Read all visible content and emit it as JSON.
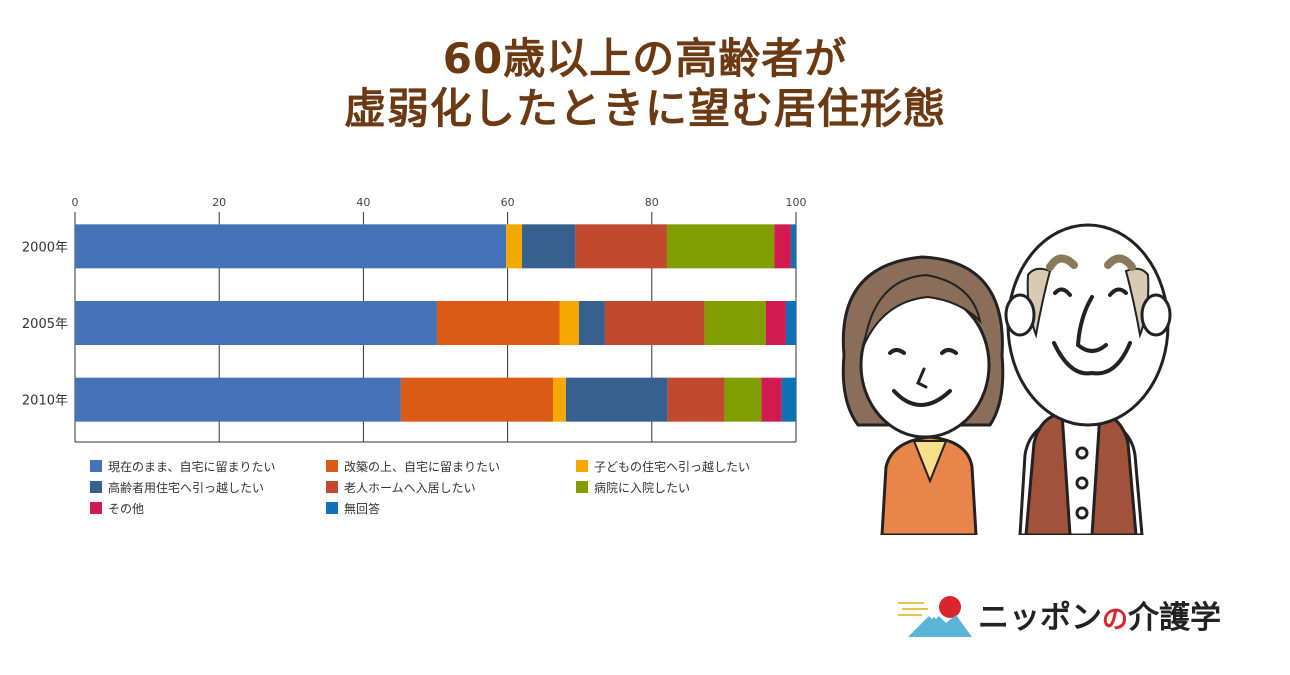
{
  "title": {
    "line1": "60歳以上の高齢者が",
    "line2": "虚弱化したときに望む居住形態"
  },
  "chart_data": {
    "type": "bar",
    "orientation": "horizontal",
    "stacked": true,
    "categories": [
      "2000年",
      "2005年",
      "2010年"
    ],
    "xlim": [
      0,
      100
    ],
    "x_ticks": [
      0,
      20,
      40,
      60,
      80,
      100
    ],
    "grid": true,
    "legend_position": "bottom",
    "series": [
      {
        "name": "現在のまま、自宅に留まりたい",
        "color": "#4472b8",
        "values": [
          59.8,
          50.2,
          45.2
        ]
      },
      {
        "name": "改築の上、自宅に留まりたい",
        "color": "#d95b16",
        "values": [
          0,
          17.0,
          21.1
        ]
      },
      {
        "name": "子どもの住宅へ引っ越したい",
        "color": "#f5a800",
        "values": [
          2.2,
          2.7,
          1.8
        ]
      },
      {
        "name": "高齢者用住宅へ引っ越したい",
        "color": "#36618f",
        "values": [
          7.4,
          3.6,
          14.1
        ]
      },
      {
        "name": "老人ホームへ入居したい",
        "color": "#bf4a2e",
        "values": [
          12.7,
          13.8,
          7.9
        ]
      },
      {
        "name": "病院に入院したい",
        "color": "#809e00",
        "values": [
          14.9,
          8.5,
          5.1
        ]
      },
      {
        "name": "その他",
        "color": "#d11b50",
        "values": [
          2.3,
          2.8,
          2.8
        ]
      },
      {
        "name": "無回答",
        "color": "#0f72b5",
        "values": [
          0.7,
          1.4,
          2.0
        ]
      }
    ]
  },
  "logo": {
    "text_before": "ニッポン",
    "text_no": "の",
    "text_after": "介護学"
  },
  "illustration": {
    "icon": "elderly-couple-icon"
  }
}
